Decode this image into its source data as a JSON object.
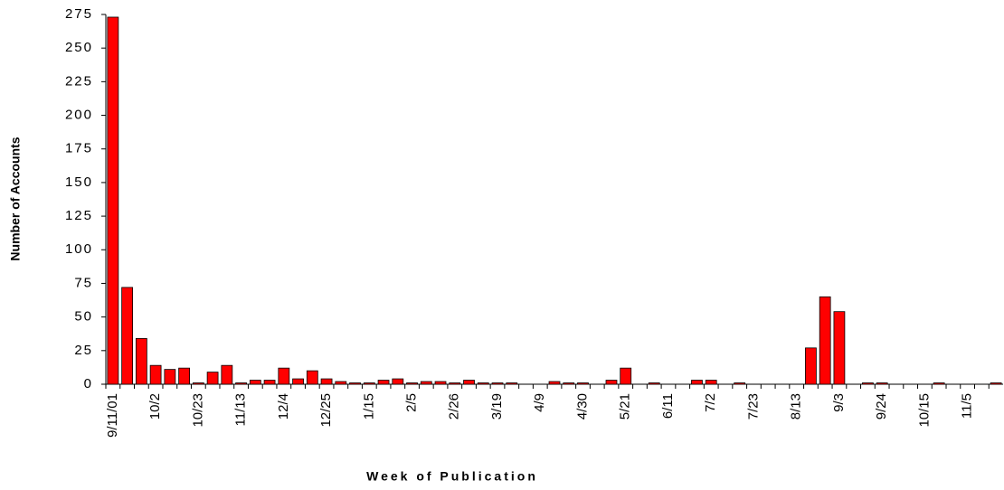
{
  "chart_data": {
    "type": "bar",
    "xlabel": "Week of Publication",
    "ylabel": "Number of Accounts",
    "categories": [
      "9/11/01",
      null,
      null,
      "10/2",
      null,
      null,
      "10/23",
      null,
      null,
      "11/13",
      null,
      null,
      "12/4",
      null,
      null,
      "12/25",
      null,
      null,
      "1/15",
      null,
      null,
      "2/5",
      null,
      null,
      "2/26",
      null,
      null,
      "3/19",
      null,
      null,
      "4/9",
      null,
      null,
      "4/30",
      null,
      null,
      "5/21",
      null,
      null,
      "6/11",
      null,
      null,
      "7/2",
      null,
      null,
      "7/23",
      null,
      null,
      "8/13",
      null,
      null,
      "9/3",
      null,
      null,
      "9/24",
      null,
      null,
      "10/15",
      null,
      null,
      "11/5",
      null,
      null
    ],
    "values": [
      273,
      72,
      34,
      14,
      11,
      12,
      1,
      9,
      14,
      1,
      3,
      3,
      12,
      4,
      10,
      4,
      2,
      1,
      1,
      3,
      4,
      1,
      2,
      2,
      1,
      3,
      1,
      1,
      1,
      0,
      0,
      2,
      1,
      1,
      0,
      3,
      12,
      0,
      1,
      0,
      0,
      3,
      3,
      0,
      1,
      0,
      0,
      0,
      0,
      27,
      65,
      54,
      0,
      1,
      1,
      0,
      0,
      0,
      1,
      0,
      0,
      0,
      1
    ],
    "color": "#ff0000",
    "ylim": [
      0,
      275
    ],
    "yticks": [
      0,
      25,
      50,
      75,
      100,
      125,
      150,
      175,
      200,
      225,
      250,
      275
    ],
    "grid": false
  }
}
